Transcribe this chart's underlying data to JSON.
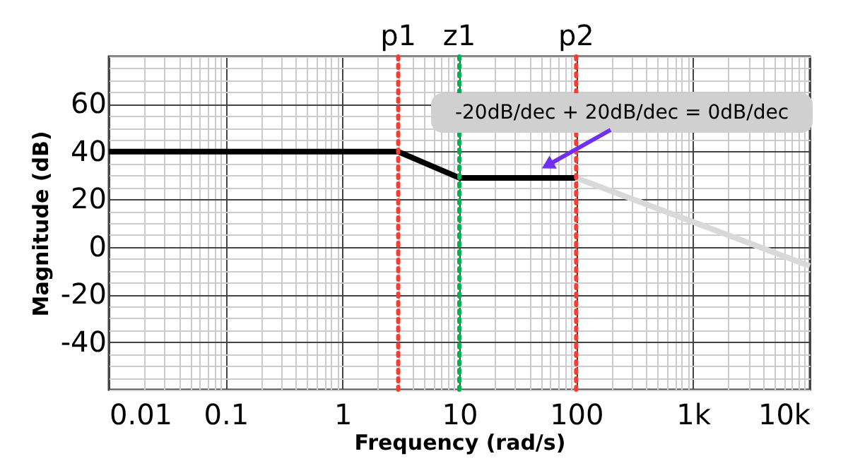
{
  "chart_data": {
    "type": "line",
    "xlabel": "Frequency (rad/s)",
    "ylabel": "Magnitude (dB)",
    "series": [
      {
        "color": "#000000",
        "x": [
          0.01,
          3,
          10,
          100
        ],
        "values": [
          40,
          40,
          29,
          29
        ]
      },
      {
        "color": "#d9d9d9",
        "x": [
          100,
          10000
        ],
        "values": [
          29,
          -8
        ]
      }
    ],
    "log": "x",
    "xlim": [
      0.01,
      10000
    ],
    "xticks": [
      {
        "value": 0.01,
        "label": "0.01"
      },
      {
        "value": 0.1,
        "label": "0.1"
      },
      1,
      10,
      100,
      {
        "value": 1000,
        "label": "1k"
      },
      {
        "value": 10000,
        "label": "10k"
      }
    ],
    "ylim": [
      -60,
      80
    ],
    "yticks": [
      -40,
      -20,
      0,
      20,
      40,
      60
    ],
    "grid": true,
    "marker": "none",
    "line_style": "solid",
    "ref_lines": [
      {
        "axis": "x",
        "value": 3,
        "label": "p1",
        "color": "#ff3b30",
        "line_style": "dotted"
      },
      {
        "axis": "x",
        "value": 10,
        "label": "z1",
        "color": "#00b050",
        "line_style": "dotted"
      },
      {
        "axis": "x",
        "value": 100,
        "label": "p2",
        "color": "#ff3b30",
        "line_style": "dotted"
      }
    ],
    "annotations": [
      {
        "text": "-20dB/dec + 20dB/dec = 0dB/dec",
        "x": 51,
        "y": 33
      }
    ]
  }
}
